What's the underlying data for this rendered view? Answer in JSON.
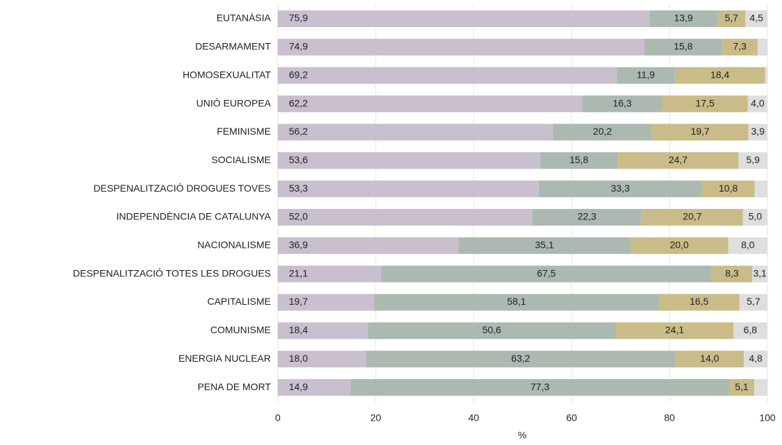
{
  "chart_data": {
    "type": "stacked_barh",
    "x_label": "%",
    "categories": [
      "EUTANÀSIA",
      "DESARMAMENT",
      "HOMOSEXUALITAT",
      "UNIÓ EUROPEA",
      "FEMINISME",
      "SOCIALISME",
      "DESPENALITZACIÓ DROGUES TOVES",
      "INDEPENDÈNCIA DE CATALUNYA",
      "NACIONALISME",
      "DESPENALITZACIÓ TOTES LES DROGUES",
      "CAPITALISME",
      "COMUNISME",
      "ENERGIA NUCLEAR",
      "PENA DE MORT"
    ],
    "series": [
      {
        "color": "#c9bfcf",
        "values": [
          75.9,
          74.9,
          69.2,
          62.2,
          56.2,
          53.6,
          53.3,
          52.0,
          36.9,
          21.1,
          19.7,
          18.4,
          18.0,
          14.9
        ],
        "value_labels": [
          "75,9",
          "74,9",
          "69,2",
          "62,2",
          "56,2",
          "53,6",
          "53,3",
          "52,0",
          "36,9",
          "21,1",
          "19,7",
          "18,4",
          "18,0",
          "14,9"
        ]
      },
      {
        "color": "#abb9b1",
        "values": [
          13.9,
          15.8,
          11.9,
          16.3,
          20.2,
          15.8,
          33.3,
          22.3,
          35.1,
          67.5,
          58.1,
          50.6,
          63.2,
          77.3
        ],
        "value_labels": [
          "13,9",
          "15,8",
          "11,9",
          "16,3",
          "20,2",
          "15,8",
          "33,3",
          "22,3",
          "35,1",
          "67,5",
          "58,1",
          "50,6",
          "63,2",
          "77,3"
        ]
      },
      {
        "color": "#c9bc88",
        "values": [
          5.7,
          7.3,
          18.4,
          17.5,
          19.7,
          24.7,
          10.8,
          20.7,
          20.0,
          8.3,
          16.5,
          24.1,
          14.0,
          5.1
        ],
        "value_labels": [
          "5,7",
          "7,3",
          "18,4",
          "17,5",
          "19,7",
          "24,7",
          "10,8",
          "20,7",
          "20,0",
          "8,3",
          "16,5",
          "24,1",
          "14,0",
          "5,1"
        ]
      },
      {
        "color": "#dedede",
        "values": [
          4.5,
          2.0,
          0.5,
          4.0,
          3.9,
          5.9,
          2.6,
          5.0,
          8.0,
          3.1,
          5.7,
          6.8,
          4.8,
          2.7
        ],
        "value_labels": [
          "4,5",
          null,
          null,
          "4,0",
          "3,9",
          "5,9",
          null,
          "5,0",
          "8,0",
          "3,1",
          "5,7",
          "6,8",
          "4,8",
          null
        ]
      }
    ],
    "xlim": [
      0,
      100
    ],
    "xticks": [
      0,
      20,
      40,
      60,
      80,
      100
    ],
    "grid": true
  }
}
